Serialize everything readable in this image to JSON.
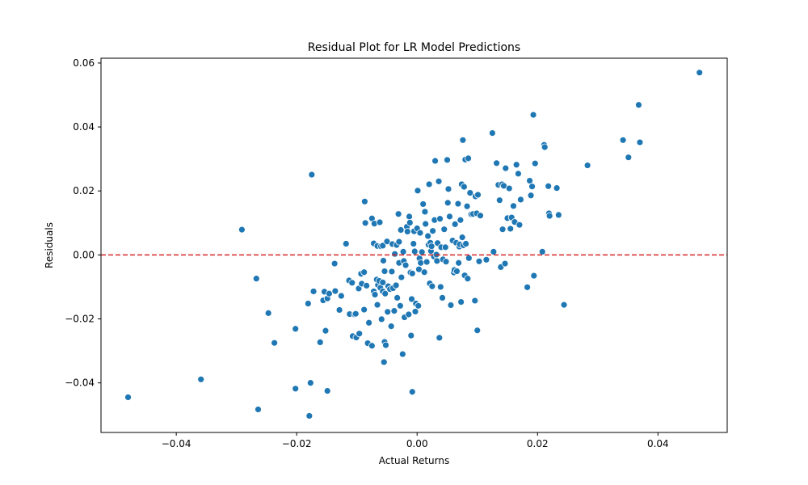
{
  "chart_data": {
    "type": "scatter",
    "title": "Residual Plot for LR Model Predictions",
    "xlabel": "Actual Returns",
    "ylabel": "Residuals",
    "xlim": [
      -0.0525,
      0.0515
    ],
    "ylim": [
      -0.0555,
      0.0615
    ],
    "xticks": [
      -0.04,
      -0.02,
      0.0,
      0.02,
      0.04
    ],
    "xtick_labels": [
      "−0.04",
      "−0.02",
      "0.00",
      "0.02",
      "0.04"
    ],
    "yticks": [
      -0.04,
      -0.02,
      0.0,
      0.02,
      0.04,
      0.06
    ],
    "ytick_labels": [
      "−0.04",
      "−0.02",
      "0.00",
      "0.02",
      "0.04",
      "0.06"
    ],
    "grid": false,
    "reference_line": {
      "y": 0.0,
      "style": "dashed",
      "color": "#d62728"
    },
    "point_color": "#1f77b4",
    "series": [
      {
        "points": [
          [
            -0.048,
            -0.0445
          ],
          [
            -0.0359,
            -0.0389
          ],
          [
            -0.0291,
            0.0079
          ],
          [
            -0.0267,
            -0.0074
          ],
          [
            -0.0264,
            -0.0483
          ],
          [
            -0.0247,
            -0.0182
          ],
          [
            -0.0237,
            -0.0275
          ],
          [
            -0.0202,
            -0.0418
          ],
          [
            -0.0202,
            -0.0231
          ],
          [
            -0.0181,
            -0.0152
          ],
          [
            -0.0179,
            -0.0503
          ],
          [
            -0.0177,
            -0.04
          ],
          [
            -0.0175,
            0.0251
          ],
          [
            -0.0172,
            -0.0114
          ],
          [
            -0.0161,
            -0.0273
          ],
          [
            -0.0156,
            -0.0142
          ],
          [
            -0.0154,
            -0.0115
          ],
          [
            -0.0152,
            -0.0237
          ],
          [
            -0.0149,
            -0.0425
          ],
          [
            -0.0149,
            -0.0136
          ],
          [
            -0.0146,
            -0.0121
          ],
          [
            -0.0137,
            -0.0027
          ],
          [
            -0.0136,
            -0.0113
          ],
          [
            -0.0129,
            -0.0172
          ],
          [
            -0.0126,
            -0.0128
          ],
          [
            -0.0118,
            0.0035
          ],
          [
            -0.0113,
            -0.008
          ],
          [
            -0.0112,
            -0.0185
          ],
          [
            -0.0108,
            -0.0087
          ],
          [
            -0.0107,
            -0.0254
          ],
          [
            -0.0104,
            -0.0186
          ],
          [
            -0.0102,
            -0.0184
          ],
          [
            -0.0101,
            -0.0258
          ],
          [
            -0.0097,
            -0.0105
          ],
          [
            -0.0096,
            -0.0246
          ],
          [
            -0.0093,
            -0.0059
          ],
          [
            -0.0092,
            -0.009
          ],
          [
            -0.0088,
            -0.0171
          ],
          [
            -0.0088,
            -0.0054
          ],
          [
            -0.0087,
            0.0167
          ],
          [
            -0.0086,
            0.01
          ],
          [
            -0.0084,
            -0.0096
          ],
          [
            -0.0082,
            -0.0276
          ],
          [
            -0.008,
            -0.0212
          ],
          [
            -0.0075,
            0.0114
          ],
          [
            -0.0075,
            -0.0284
          ],
          [
            -0.0072,
            0.0036
          ],
          [
            -0.0072,
            -0.0114
          ],
          [
            -0.0071,
            0.0098
          ],
          [
            -0.007,
            -0.0124
          ],
          [
            -0.0067,
            -0.0077
          ],
          [
            -0.0066,
            0.0028
          ],
          [
            -0.0066,
            -0.0156
          ],
          [
            -0.0065,
            -0.0094
          ],
          [
            -0.0063,
            -0.0081
          ],
          [
            -0.0062,
            0.0102
          ],
          [
            -0.0061,
            -0.0103
          ],
          [
            -0.006,
            0.0027
          ],
          [
            -0.0059,
            -0.0201
          ],
          [
            -0.0057,
            0.0029
          ],
          [
            -0.0057,
            -0.0086
          ],
          [
            -0.0057,
            -0.0114
          ],
          [
            -0.0056,
            -0.0018
          ],
          [
            -0.0055,
            -0.0335
          ],
          [
            -0.0054,
            -0.0051
          ],
          [
            -0.0054,
            -0.0272
          ],
          [
            -0.0053,
            -0.0121
          ],
          [
            -0.0052,
            -0.0282
          ],
          [
            -0.005,
            0.0042
          ],
          [
            -0.0049,
            -0.0178
          ],
          [
            -0.0048,
            -0.0098
          ],
          [
            -0.0045,
            -0.0107
          ],
          [
            -0.0043,
            -0.0223
          ],
          [
            -0.0042,
            -0.0052
          ],
          [
            -0.0041,
            0.0034
          ],
          [
            -0.004,
            -0.0104
          ],
          [
            -0.0038,
            -0.0175
          ],
          [
            -0.0037,
            0.0003
          ],
          [
            -0.0035,
            -0.0095
          ],
          [
            -0.0034,
            0.0031
          ],
          [
            -0.0033,
            -0.0134
          ],
          [
            -0.0031,
            0.0128
          ],
          [
            -0.003,
            -0.0025
          ],
          [
            -0.003,
            0.0041
          ],
          [
            -0.0028,
            -0.0159
          ],
          [
            -0.0027,
            0.0078
          ],
          [
            -0.0026,
            -0.007
          ],
          [
            -0.0024,
            -0.031
          ],
          [
            -0.0023,
            0.001
          ],
          [
            -0.0022,
            -0.0019
          ],
          [
            -0.0021,
            -0.0195
          ],
          [
            -0.0019,
            -0.0032
          ],
          [
            -0.0017,
            0.0088
          ],
          [
            -0.0016,
            0.0073
          ],
          [
            -0.0014,
            -0.0186
          ],
          [
            -0.0013,
            0.012
          ],
          [
            -0.0012,
            0.0101
          ],
          [
            -0.0011,
            -0.0055
          ],
          [
            -0.001,
            -0.0252
          ],
          [
            -0.0009,
            -0.0138
          ],
          [
            -0.0008,
            -0.0428
          ],
          [
            -0.0008,
            -0.0058
          ],
          [
            -0.0006,
            0.0035
          ],
          [
            -0.0005,
            0.0074
          ],
          [
            -0.0004,
            0.0011
          ],
          [
            -0.0003,
            -0.0177
          ],
          [
            -0.0002,
            -0.0152
          ],
          [
            0.0,
            0.0083
          ],
          [
            0.0001,
            0.0201
          ],
          [
            0.0002,
            -0.0159
          ],
          [
            0.0003,
            -0.0045
          ],
          [
            0.0004,
            -0.0011
          ],
          [
            0.0005,
            0.0069
          ],
          [
            0.0006,
            -0.0025
          ],
          [
            0.0008,
            0.0009
          ],
          [
            0.001,
            0.0159
          ],
          [
            0.0012,
            -0.0054
          ],
          [
            0.0013,
            0.0135
          ],
          [
            0.0014,
            0.0097
          ],
          [
            0.0016,
            -0.0022
          ],
          [
            0.0018,
            0.0059
          ],
          [
            0.0019,
            0.0032
          ],
          [
            0.002,
            0.0221
          ],
          [
            0.0021,
            -0.0089
          ],
          [
            0.0022,
            0.0038
          ],
          [
            0.0023,
            0.0012
          ],
          [
            0.0024,
            0.0027
          ],
          [
            0.0025,
            -0.0098
          ],
          [
            0.0026,
            0.0075
          ],
          [
            0.0028,
            -0.0005
          ],
          [
            0.0029,
            0.0109
          ],
          [
            0.003,
            0.0294
          ],
          [
            0.0032,
            0.0001
          ],
          [
            0.0033,
            -0.0019
          ],
          [
            0.0034,
            0.0037
          ],
          [
            0.0036,
            0.023
          ],
          [
            0.0037,
            -0.0259
          ],
          [
            0.0038,
            0.0113
          ],
          [
            0.0039,
            -0.01
          ],
          [
            0.004,
            0.0024
          ],
          [
            0.0042,
            -0.0134
          ],
          [
            0.0043,
            -0.0014
          ],
          [
            0.0045,
            0.008
          ],
          [
            0.0047,
            0.0024
          ],
          [
            0.0048,
            -0.0021
          ],
          [
            0.005,
            0.0297
          ],
          [
            0.0051,
            0.0163
          ],
          [
            0.0052,
            0.0206
          ],
          [
            0.0054,
            0.012
          ],
          [
            0.0056,
            -0.0157
          ],
          [
            0.0059,
            0.0045
          ],
          [
            0.0061,
            -0.0055
          ],
          [
            0.0062,
            -0.0047
          ],
          [
            0.0063,
            0.0096
          ],
          [
            0.0065,
            0.0038
          ],
          [
            0.0066,
            -0.0051
          ],
          [
            0.0068,
            0.016
          ],
          [
            0.0069,
            -0.0025
          ],
          [
            0.007,
            0.0026
          ],
          [
            0.0071,
            0.0033
          ],
          [
            0.0072,
            0.0109
          ],
          [
            0.0073,
            -0.0147
          ],
          [
            0.0074,
            0.0221
          ],
          [
            0.0075,
            0.0055
          ],
          [
            0.0076,
            0.0359
          ],
          [
            0.0077,
            0.003
          ],
          [
            0.0078,
            0.0213
          ],
          [
            0.0079,
            -0.0064
          ],
          [
            0.008,
            0.0298
          ],
          [
            0.0081,
            0.0035
          ],
          [
            0.0083,
            0.0152
          ],
          [
            0.0084,
            -0.0074
          ],
          [
            0.0085,
            0.0302
          ],
          [
            0.0086,
            -0.001
          ],
          [
            0.0088,
            0.0194
          ],
          [
            0.009,
            0.0127
          ],
          [
            0.0093,
            0.0128
          ],
          [
            0.0096,
            -0.0143
          ],
          [
            0.0097,
            0.0183
          ],
          [
            0.0099,
            0.013
          ],
          [
            0.01,
            -0.0236
          ],
          [
            0.0101,
            0.0188
          ],
          [
            0.0103,
            -0.002
          ],
          [
            0.0105,
            0.0123
          ],
          [
            0.0115,
            -0.0015
          ],
          [
            0.0125,
            0.0381
          ],
          [
            0.0127,
            0.001
          ],
          [
            0.0132,
            0.0287
          ],
          [
            0.0135,
            0.0219
          ],
          [
            0.0137,
            0.0171
          ],
          [
            0.0139,
            -0.0038
          ],
          [
            0.0141,
            0.0221
          ],
          [
            0.0142,
            0.008
          ],
          [
            0.0144,
            0.0216
          ],
          [
            0.0146,
            -0.0027
          ],
          [
            0.0147,
            0.0271
          ],
          [
            0.015,
            0.0115
          ],
          [
            0.0153,
            0.0208
          ],
          [
            0.0155,
            0.0082
          ],
          [
            0.0157,
            0.0117
          ],
          [
            0.016,
            0.0153
          ],
          [
            0.0162,
            0.0103
          ],
          [
            0.0165,
            0.0282
          ],
          [
            0.0168,
            0.0254
          ],
          [
            0.017,
            0.0094
          ],
          [
            0.0172,
            0.0173
          ],
          [
            0.0183,
            -0.0101
          ],
          [
            0.0187,
            0.0232
          ],
          [
            0.0189,
            0.0186
          ],
          [
            0.0191,
            0.0214
          ],
          [
            0.0193,
            0.0438
          ],
          [
            0.0194,
            -0.0065
          ],
          [
            0.0196,
            0.0286
          ],
          [
            0.0208,
            0.001
          ],
          [
            0.0211,
            0.0344
          ],
          [
            0.0212,
            0.0337
          ],
          [
            0.0218,
            0.0215
          ],
          [
            0.0219,
            0.013
          ],
          [
            0.022,
            0.0122
          ],
          [
            0.0232,
            0.0209
          ],
          [
            0.0235,
            0.0125
          ],
          [
            0.0244,
            -0.0156
          ],
          [
            0.0283,
            0.028
          ],
          [
            0.0342,
            0.0359
          ],
          [
            0.0351,
            0.0305
          ],
          [
            0.0368,
            0.0469
          ],
          [
            0.037,
            0.0352
          ],
          [
            0.0469,
            0.057
          ]
        ]
      }
    ]
  }
}
